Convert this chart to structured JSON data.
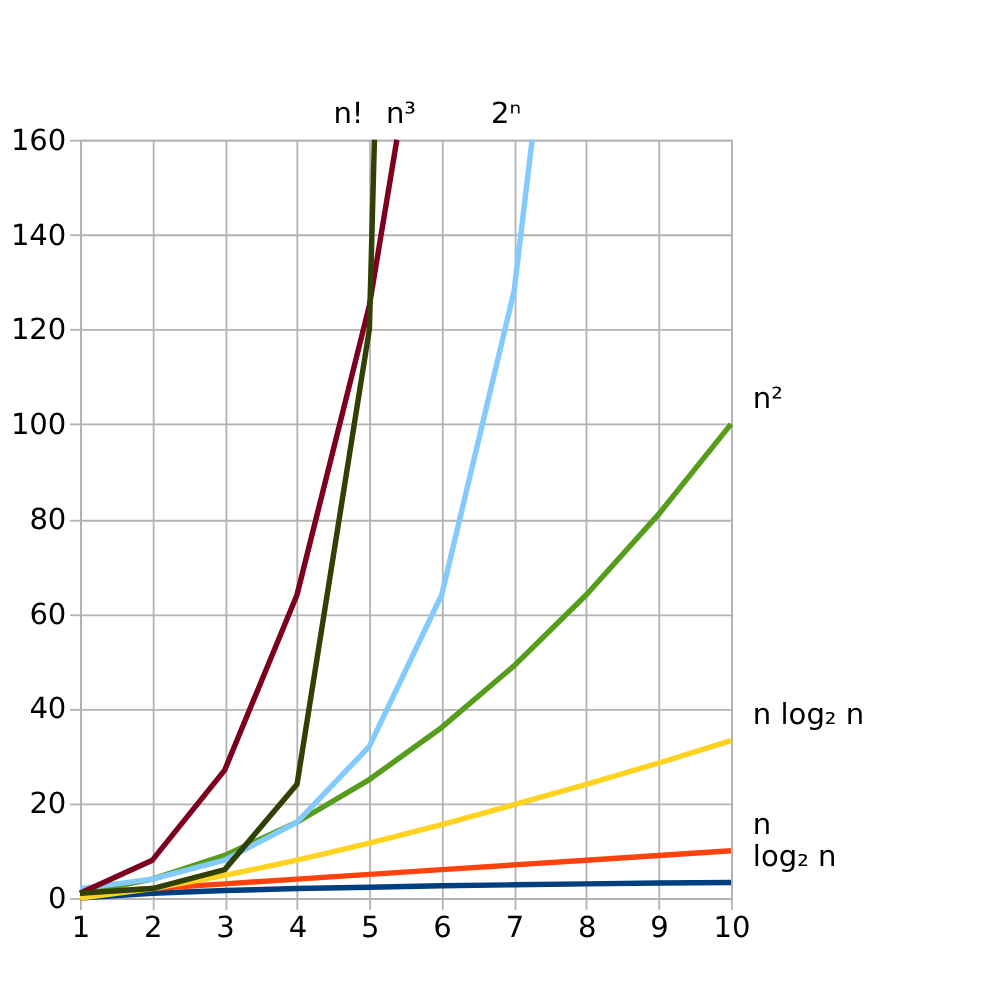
{
  "chart_data": {
    "type": "line",
    "xlim": [
      1,
      10
    ],
    "xticks": [
      1,
      2,
      3,
      4,
      5,
      6,
      7,
      8,
      9,
      10
    ],
    "ylim": [
      0,
      160
    ],
    "yticks": [
      0,
      20,
      40,
      60,
      80,
      100,
      120,
      140,
      160
    ],
    "grid": true,
    "legend": false,
    "line_style": "solid",
    "marker": "none",
    "series": [
      {
        "name": "log₂ n",
        "color": "#003f7f",
        "x": [
          1,
          2,
          3,
          4,
          5,
          6,
          7,
          8,
          9,
          10
        ],
        "values": [
          0,
          1,
          1.6,
          2,
          2.3,
          2.6,
          2.8,
          3,
          3.2,
          3.3
        ]
      },
      {
        "name": "n",
        "color": "#ff420e",
        "x": [
          1,
          2,
          3,
          4,
          5,
          6,
          7,
          8,
          9,
          10
        ],
        "values": [
          1,
          2,
          3,
          4,
          5,
          6,
          7,
          8,
          9,
          10
        ]
      },
      {
        "name": "n log₂ n",
        "color": "#ffd320",
        "x": [
          1,
          2,
          3,
          4,
          5,
          6,
          7,
          8,
          9,
          10
        ],
        "values": [
          0,
          2,
          4.8,
          8,
          11.6,
          15.5,
          19.7,
          24,
          28.5,
          33.2
        ]
      },
      {
        "name": "n²",
        "color": "#579d1c",
        "x": [
          1,
          2,
          3,
          4,
          5,
          6,
          7,
          8,
          9,
          10
        ],
        "values": [
          1,
          4,
          9,
          16,
          25,
          36,
          49,
          64,
          81,
          100
        ]
      },
      {
        "name": "2ⁿ",
        "color": "#83caff",
        "x": [
          1,
          2,
          3,
          4,
          5,
          6,
          7,
          7.25
        ],
        "values": [
          2,
          4,
          8,
          16,
          32,
          64,
          128,
          160
        ]
      },
      {
        "name": "n³",
        "color": "#7e0021",
        "x": [
          1,
          2,
          3,
          4,
          5,
          5.38
        ],
        "values": [
          1,
          8,
          27,
          64,
          125,
          160
        ]
      },
      {
        "name": "n!",
        "color": "#314004",
        "x": [
          1,
          2,
          3,
          4,
          5,
          5.07
        ],
        "values": [
          1,
          2,
          6,
          24,
          120,
          160
        ]
      }
    ]
  }
}
